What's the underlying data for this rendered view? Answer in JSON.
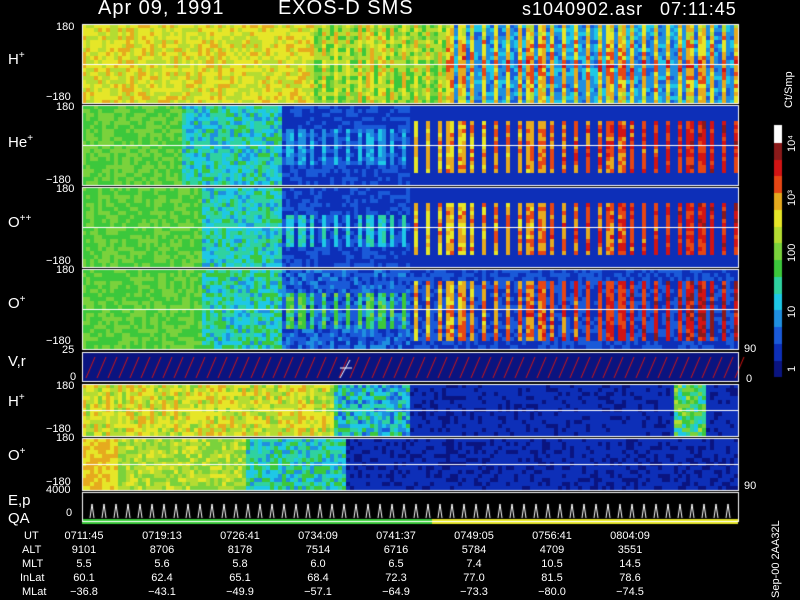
{
  "header": {
    "date": "Apr 09, 1991",
    "instrument": "EXOS-D SMS",
    "file": "s1040902.asr",
    "time": "07:11:45"
  },
  "colorbar": {
    "unit": "Ct/Smp",
    "ticks": [
      "1",
      "10",
      "100",
      "10³",
      "10⁴"
    ],
    "colors": [
      "#0a1480",
      "#0d2fb8",
      "#1a5ad8",
      "#1f8fe0",
      "#1ec8e6",
      "#2fd2a0",
      "#3cc83c",
      "#7ad23c",
      "#b4dc32",
      "#e6e628",
      "#e6aa1e",
      "#e64614",
      "#d21414",
      "#8a1a1a",
      "#ffffff"
    ]
  },
  "panels": {
    "p1": {
      "label": "H",
      "sup": "+",
      "top": "180",
      "bottom": "−180"
    },
    "p2": {
      "label": "He",
      "sup": "+",
      "top": "180",
      "bottom": "−180"
    },
    "p3": {
      "label": "O",
      "sup": "++",
      "top": "180",
      "bottom": "−180"
    },
    "p4": {
      "label": "O",
      "sup": "+",
      "top": "180",
      "bottom": "−180"
    },
    "p5": {
      "label": "V,r",
      "top": "25",
      "bottom": "0",
      "rtop": "90",
      "rbottom": "0"
    },
    "p6": {
      "label": "H",
      "sup": "+",
      "top": "180",
      "bottom": "−180"
    },
    "p7": {
      "label": "O",
      "sup": "+",
      "top": "180",
      "bottom": "−180",
      "rbottom": "90"
    },
    "p8": {
      "label": "E,p",
      "label2": "QA",
      "top": "4000",
      "bottom": "0"
    }
  },
  "side_note": "Sep-00 2AA32L",
  "table": {
    "row_labels": [
      "UT",
      "ALT",
      "MLT",
      "InLat",
      "MLat"
    ],
    "UT": [
      "0711:45",
      "0719:13",
      "0726:41",
      "0734:09",
      "0741:37",
      "0749:05",
      "0756:41",
      "0804:09"
    ],
    "ALT": [
      "9101",
      "8706",
      "8178",
      "7514",
      "6716",
      "5784",
      "4709",
      "3551"
    ],
    "MLT": [
      "5.5",
      "5.6",
      "5.8",
      "6.0",
      "6.5",
      "7.4",
      "10.5",
      "14.5"
    ],
    "InLat": [
      "60.1",
      "62.4",
      "65.1",
      "68.4",
      "72.3",
      "77.0",
      "81.5",
      "78.6"
    ],
    "MLat": [
      "−36.8",
      "−43.1",
      "−49.9",
      "−57.1",
      "−64.9",
      "−73.3",
      "−80.0",
      "−74.5"
    ]
  },
  "chart_data": {
    "type": "heatmap",
    "x": [
      "0711:45",
      "0719:13",
      "0726:41",
      "0734:09",
      "0741:37",
      "0749:05",
      "0756:41",
      "0804:09"
    ],
    "panels": [
      "H+",
      "He+",
      "O++",
      "O+",
      "V,r",
      "H+",
      "O+",
      "E,p"
    ],
    "y_range_pitch": [
      -180,
      180
    ],
    "y_range_vr": [
      0,
      25
    ],
    "y_range_ep": [
      0,
      4000
    ],
    "color_scale": "log",
    "color_range": [
      1,
      10000
    ]
  }
}
